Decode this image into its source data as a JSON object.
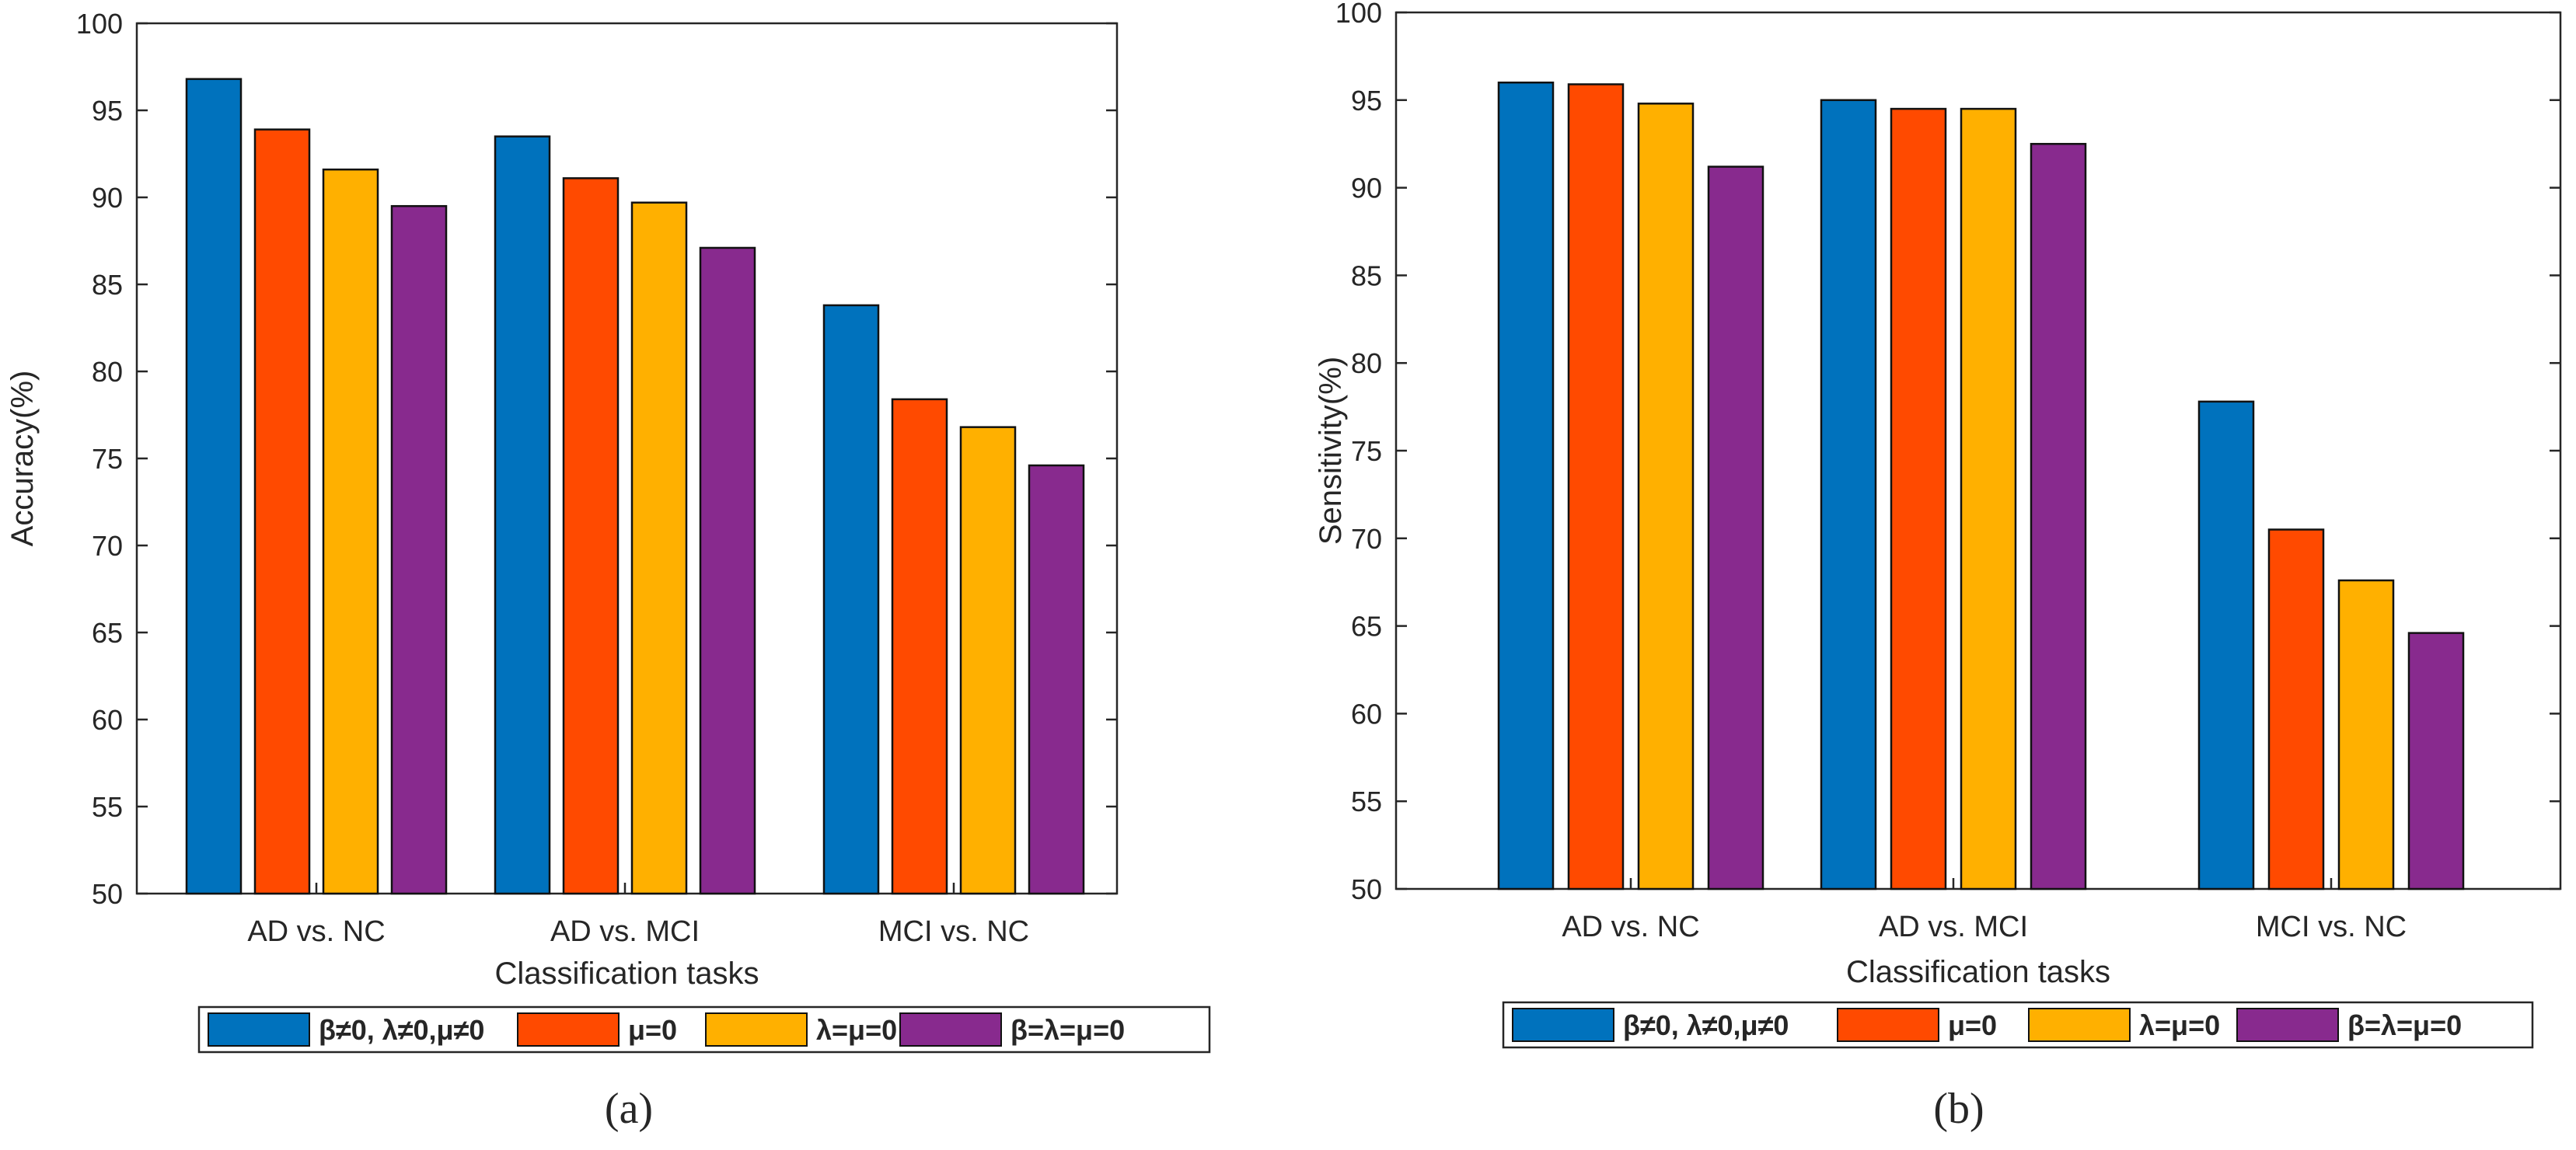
{
  "colors": {
    "series": [
      "#0072BD",
      "#FF4A00",
      "#FFB000",
      "#882A8E"
    ],
    "axis": "#262626",
    "background": "#ffffff"
  },
  "chart_data": [
    {
      "type": "bar",
      "panel_label": "(a)",
      "categories": [
        "AD vs. NC",
        "AD vs. MCI",
        "MCI vs. NC"
      ],
      "series": [
        {
          "name": "β≠0, λ≠0,μ≠0",
          "values": [
            96.8,
            93.5,
            83.8
          ]
        },
        {
          "name": "μ=0",
          "values": [
            93.9,
            91.1,
            78.4
          ]
        },
        {
          "name": "λ=μ=0",
          "values": [
            91.6,
            89.7,
            76.8
          ]
        },
        {
          "name": "β=λ=μ=0",
          "values": [
            89.5,
            87.1,
            74.6
          ]
        }
      ],
      "xlabel": "Classification tasks",
      "ylabel": "Accuracy(%)",
      "ylim": [
        50,
        100
      ],
      "yticks": [
        50,
        55,
        60,
        65,
        70,
        75,
        80,
        85,
        90,
        95,
        100
      ],
      "grid": false,
      "legend_placement": "bottom"
    },
    {
      "type": "bar",
      "panel_label": "(b)",
      "categories": [
        "AD vs. NC",
        "AD vs. MCI",
        "MCI vs. NC"
      ],
      "series": [
        {
          "name": "β≠0, λ≠0,μ≠0",
          "values": [
            96.0,
            95.0,
            77.8
          ]
        },
        {
          "name": "μ=0",
          "values": [
            95.9,
            94.5,
            70.5
          ]
        },
        {
          "name": "λ=μ=0",
          "values": [
            94.8,
            94.5,
            67.6
          ]
        },
        {
          "name": "β=λ=μ=0",
          "values": [
            91.2,
            92.5,
            64.6
          ]
        }
      ],
      "xlabel": "Classification tasks",
      "ylabel": "Sensitivity(%)",
      "ylim": [
        50,
        100
      ],
      "yticks": [
        50,
        55,
        60,
        65,
        70,
        75,
        80,
        85,
        90,
        95,
        100
      ],
      "grid": false,
      "legend_placement": "bottom"
    }
  ]
}
